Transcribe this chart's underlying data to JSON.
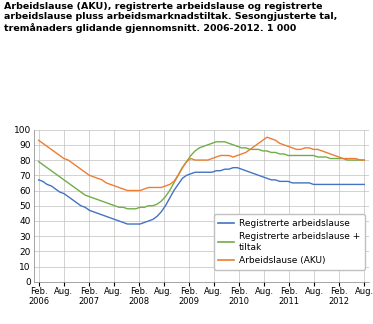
{
  "title": "Arbeidslause (AKU), registrerte arbeidslause og registrerte\narbeidslause pluss arbeidsmarknadstiltak. Sesongjusterte tal,\ntremånaders glidande gjennomsnitt. 2006-2012. 1 000",
  "ylim": [
    0,
    100
  ],
  "yticks": [
    0,
    10,
    20,
    30,
    40,
    50,
    60,
    70,
    80,
    90,
    100
  ],
  "xtick_labels": [
    "Feb.\n2006",
    "Aug.",
    "Feb.\n2007",
    "Aug.",
    "Feb.\n2008",
    "Aug.",
    "Feb.\n2009",
    "Aug.",
    "Feb.\n2010",
    "Aug.",
    "Feb.\n2011",
    "Aug.",
    "Feb.\n2012",
    "Aug."
  ],
  "legend_labels": [
    "Registrerte arbeidslause",
    "Registrerte arbeidslause +\ntiltak",
    "Arbeidslause (AKU)"
  ],
  "colors": [
    "#4472C4",
    "#70AD47",
    "#ED7D31"
  ],
  "background": "#FFFFFF",
  "blue_data": [
    67,
    66,
    64,
    63,
    61,
    59,
    58,
    56,
    54,
    52,
    50,
    49,
    47,
    46,
    45,
    44,
    43,
    42,
    41,
    40,
    39,
    38,
    38,
    38,
    38,
    39,
    40,
    41,
    43,
    46,
    50,
    55,
    60,
    64,
    68,
    70,
    71,
    72,
    72,
    72,
    72,
    72,
    73,
    73,
    74,
    74,
    75,
    75,
    74,
    73,
    72,
    71,
    70,
    69,
    68,
    67,
    67,
    66,
    66,
    66,
    65,
    65,
    65,
    65,
    65,
    64,
    64,
    64,
    64,
    64,
    64,
    64,
    64,
    64,
    64,
    64,
    64,
    64
  ],
  "green_data": [
    79,
    77,
    75,
    73,
    71,
    69,
    67,
    65,
    63,
    61,
    59,
    57,
    56,
    55,
    54,
    53,
    52,
    51,
    50,
    49,
    49,
    48,
    48,
    48,
    49,
    49,
    50,
    50,
    51,
    53,
    56,
    60,
    65,
    70,
    75,
    79,
    83,
    86,
    88,
    89,
    90,
    91,
    92,
    92,
    92,
    91,
    90,
    89,
    88,
    88,
    87,
    87,
    87,
    86,
    86,
    85,
    85,
    84,
    84,
    83,
    83,
    83,
    83,
    83,
    83,
    83,
    82,
    82,
    82,
    81,
    81,
    81,
    81,
    80,
    80,
    80,
    80,
    80
  ],
  "orange_data": [
    93,
    91,
    89,
    87,
    85,
    83,
    81,
    80,
    78,
    76,
    74,
    72,
    70,
    69,
    68,
    67,
    65,
    64,
    63,
    62,
    61,
    60,
    60,
    60,
    60,
    61,
    62,
    62,
    62,
    62,
    63,
    64,
    66,
    70,
    75,
    79,
    81,
    80,
    80,
    80,
    80,
    81,
    82,
    83,
    83,
    83,
    82,
    83,
    84,
    85,
    87,
    89,
    91,
    93,
    95,
    94,
    93,
    91,
    90,
    89,
    88,
    87,
    87,
    88,
    88,
    87,
    87,
    86,
    85,
    84,
    83,
    82,
    81,
    81,
    81,
    81,
    80,
    80
  ]
}
